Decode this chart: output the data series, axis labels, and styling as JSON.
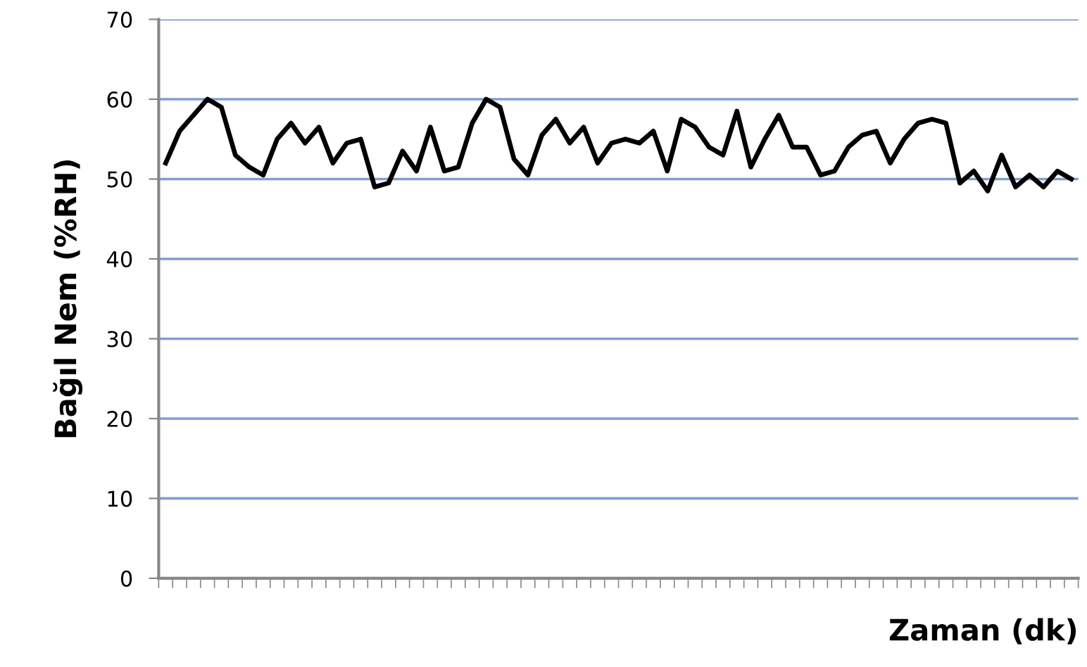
{
  "chart_data": {
    "type": "line",
    "xlabel": "Zaman (dk)",
    "ylabel": "Bağıl Nem (%RH)",
    "categories": [
      null,
      null,
      null,
      null,
      null,
      null,
      null,
      null,
      null,
      null,
      null,
      null,
      null,
      null,
      null,
      null,
      null,
      null,
      null,
      null,
      null,
      null,
      null,
      null,
      null,
      null,
      null,
      null,
      null,
      null,
      null,
      null,
      null,
      null,
      null,
      null,
      null,
      null,
      null,
      null,
      null,
      null,
      null,
      null,
      null,
      null,
      null,
      null,
      null,
      null,
      null,
      null,
      null,
      null,
      null,
      null,
      null,
      null,
      null,
      null,
      null,
      null,
      null,
      null,
      null,
      null
    ],
    "series": [
      {
        "color": "#000000",
        "values": [
          52,
          56,
          58,
          60,
          59,
          53,
          51.5,
          50.5,
          55,
          57,
          54.5,
          56.5,
          52,
          54.5,
          55,
          49,
          49.5,
          53.5,
          51,
          56.5,
          51,
          51.5,
          57,
          60,
          59,
          52.5,
          50.5,
          55.5,
          57.5,
          54.5,
          56.5,
          52,
          54.5,
          55,
          54.5,
          56,
          51,
          57.5,
          56.5,
          54,
          53,
          58.5,
          51.5,
          55,
          58,
          54,
          54,
          50.5,
          51,
          54,
          55.5,
          56,
          52,
          55,
          57,
          57.5,
          57,
          49.5,
          51,
          48.5,
          53,
          49,
          50.5,
          49,
          51,
          50
        ]
      }
    ],
    "ylim": [
      0,
      70
    ],
    "yticks": [
      0,
      10,
      20,
      30,
      40,
      50,
      60,
      70
    ],
    "grid": "y",
    "tick_labels": "y",
    "line_style": "solid",
    "marker": "none"
  }
}
